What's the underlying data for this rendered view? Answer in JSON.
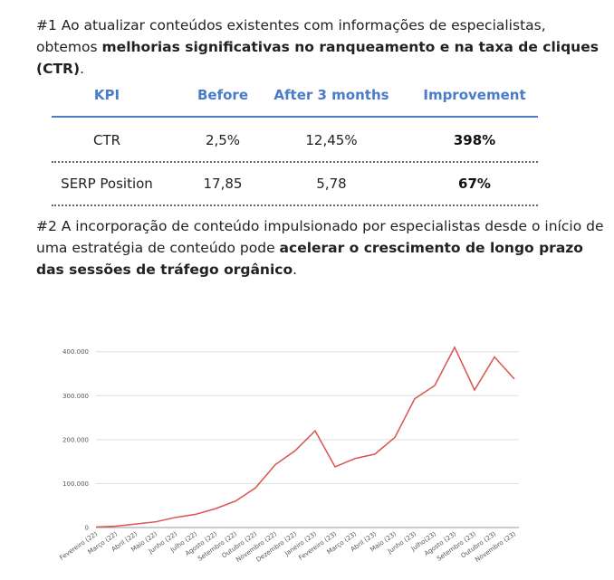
{
  "intro": {
    "parts": [
      "#1 Ao atualizar conteúdos existentes com informações de especialistas, obtemos ",
      "melhorias significativas no ranqueamento e na taxa de cliques (CTR)",
      "."
    ]
  },
  "table": {
    "header": [
      "KPI",
      "Before",
      "After 3 months",
      "Improvement"
    ],
    "rows": [
      [
        "CTR",
        "2,5%",
        "12,45%",
        "398%"
      ],
      [
        "SERP Position",
        "17,85",
        "5,78",
        "67%"
      ]
    ]
  },
  "section2": {
    "parts": [
      "#2 A incorporação de conteúdo impulsionado por especialistas desde o início de uma estratégia de conteúdo pode ",
      "acelerar o crescimento de longo prazo das sessões de tráfego orgânico",
      "."
    ]
  },
  "chart_data": {
    "type": "line",
    "categories": [
      "Fevereiro (22)",
      "Março (22)",
      "Abril (22)",
      "Maio (22)",
      "Junho (22)",
      "Julho (22)",
      "Agosto (22)",
      "Setembro (22)",
      "Outubro (22)",
      "Novembro (22)",
      "Dezembro (22)",
      "Janeiro (23)",
      "Fevereiro (23)",
      "Março (23)",
      "Abril (23)",
      "Maio (23)",
      "Junho (23)",
      "Julho(23)",
      "Agosto (23)",
      "Setembro (23)",
      "Outubro (23)",
      "Novembro (23)"
    ],
    "series": [
      {
        "color": "#d9534f",
        "values": [
          1000,
          3000,
          8000,
          13000,
          23000,
          30000,
          43000,
          60000,
          90000,
          143000,
          175000,
          220000,
          138000,
          157000,
          167000,
          205000,
          293000,
          323000,
          410000,
          313000,
          388000,
          338000
        ]
      }
    ],
    "ylim": [
      0,
      420000
    ],
    "yticks": [
      0,
      {
        "value": 100000,
        "label": "100.000"
      },
      {
        "value": 200000,
        "label": "200.000"
      },
      {
        "value": 300000,
        "label": "300.000"
      },
      {
        "value": 400000,
        "label": "400.000"
      }
    ],
    "grid": true
  }
}
